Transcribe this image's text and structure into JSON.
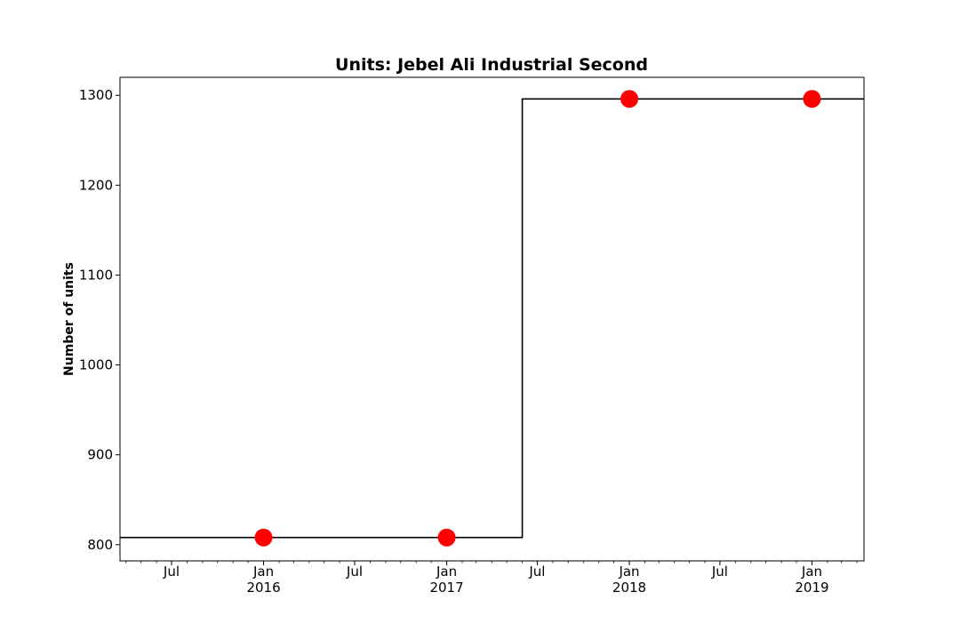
{
  "chart_data": {
    "type": "line",
    "style": "step",
    "title": "Units: Jebel Ali Industrial Second",
    "xlabel": "",
    "ylabel": "Number of units",
    "xlim": [
      "2015-03-20",
      "2019-04-15"
    ],
    "ylim": [
      782,
      1320
    ],
    "grid": false,
    "legend": "none",
    "y_ticks": [
      800,
      900,
      1000,
      1100,
      1200,
      1300
    ],
    "x_ticks": [
      {
        "date": "2015-07-01",
        "label": "Jul",
        "year": ""
      },
      {
        "date": "2016-01-01",
        "label": "Jan",
        "year": "2016"
      },
      {
        "date": "2016-07-01",
        "label": "Jul",
        "year": ""
      },
      {
        "date": "2017-01-01",
        "label": "Jan",
        "year": "2017"
      },
      {
        "date": "2017-07-01",
        "label": "Jul",
        "year": ""
      },
      {
        "date": "2018-01-01",
        "label": "Jan",
        "year": "2018"
      },
      {
        "date": "2018-07-01",
        "label": "Jul",
        "year": ""
      },
      {
        "date": "2019-01-01",
        "label": "Jan",
        "year": "2019"
      }
    ],
    "series": [
      {
        "kind": "step",
        "color": "#000000",
        "x": [
          "2015-03-20",
          "2017-06-01",
          "2017-06-01",
          "2019-04-15"
        ],
        "y": [
          808,
          808,
          1296,
          1296
        ]
      },
      {
        "kind": "markers",
        "color": "#ff0000",
        "x": [
          "2016-01-01",
          "2017-01-01",
          "2018-01-01",
          "2019-01-01"
        ],
        "y": [
          808,
          808,
          1296,
          1296
        ]
      }
    ]
  }
}
